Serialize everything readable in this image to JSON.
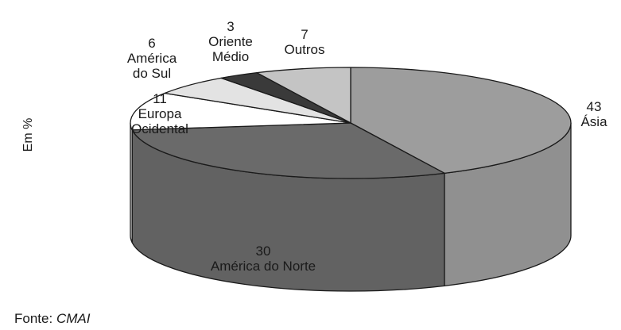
{
  "chart_data": {
    "type": "pie",
    "title": "",
    "unit_label": "Em %",
    "slices": [
      {
        "label": "Ásia",
        "value": 43,
        "label_lines": [
          "43",
          "Ásia"
        ]
      },
      {
        "label": "América do Norte",
        "value": 30,
        "label_lines": [
          "30",
          "América do Norte"
        ]
      },
      {
        "label": "Europa Ocidental",
        "value": 11,
        "label_lines": [
          "11",
          "Europa",
          "Ocidental"
        ]
      },
      {
        "label": "América do Sul",
        "value": 6,
        "label_lines": [
          "6",
          "América",
          "do Sul"
        ]
      },
      {
        "label": "Oriente Médio",
        "value": 3,
        "label_lines": [
          "3",
          "Oriente",
          "Médio"
        ]
      },
      {
        "label": "Outros",
        "value": 7,
        "label_lines": [
          "7",
          "Outros"
        ]
      }
    ],
    "colors": [
      "#9d9d9d",
      "#6a6a6a",
      "#ffffff",
      "#e3e3e3",
      "#3a3a3a",
      "#c4c4c4"
    ],
    "style": "3d-pie",
    "legend": "none"
  },
  "source": {
    "prefix": "Fonte:",
    "name": "CMAI"
  }
}
